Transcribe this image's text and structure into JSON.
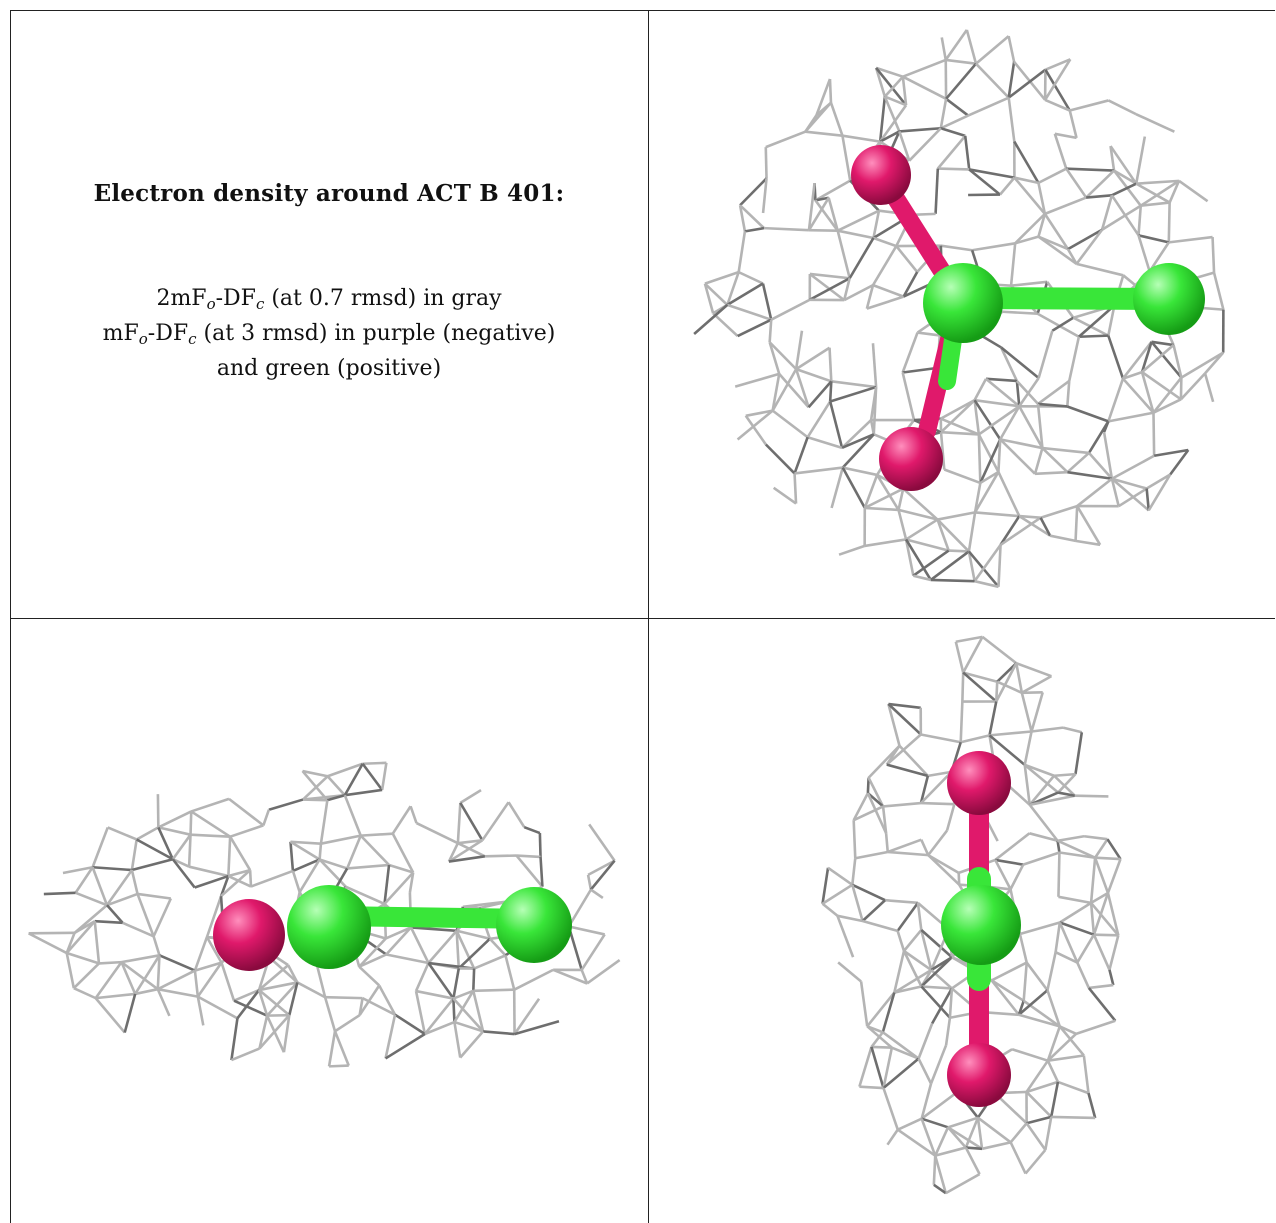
{
  "figure": {
    "title": "Electron density around ACT B 401:",
    "legend": {
      "line1": {
        "pre": "2mF",
        "sub1": "o",
        "mid": "-DF",
        "sub2": "c",
        "post": " (at 0.7 rmsd) in gray"
      },
      "line2": {
        "pre": "mF",
        "sub1": "o",
        "mid": "-DF",
        "sub2": "c",
        "post": " (at 3 rmsd) in purple (negative)"
      },
      "line3": "and green (positive)"
    }
  },
  "colors": {
    "mesh": "#b4b4b4",
    "mesh_dark": "#6e6e6e",
    "oxygen": "#e0196b",
    "carbon": "#39e639",
    "border": "#222222"
  },
  "panels": [
    {
      "name": "view-top-right",
      "atoms": [
        "oxygen",
        "carbon",
        "carbon",
        "oxygen"
      ]
    },
    {
      "name": "view-bottom-left",
      "atoms": [
        "oxygen",
        "carbon",
        "carbon"
      ]
    },
    {
      "name": "view-bottom-right",
      "atoms": [
        "oxygen",
        "carbon",
        "oxygen"
      ]
    }
  ]
}
